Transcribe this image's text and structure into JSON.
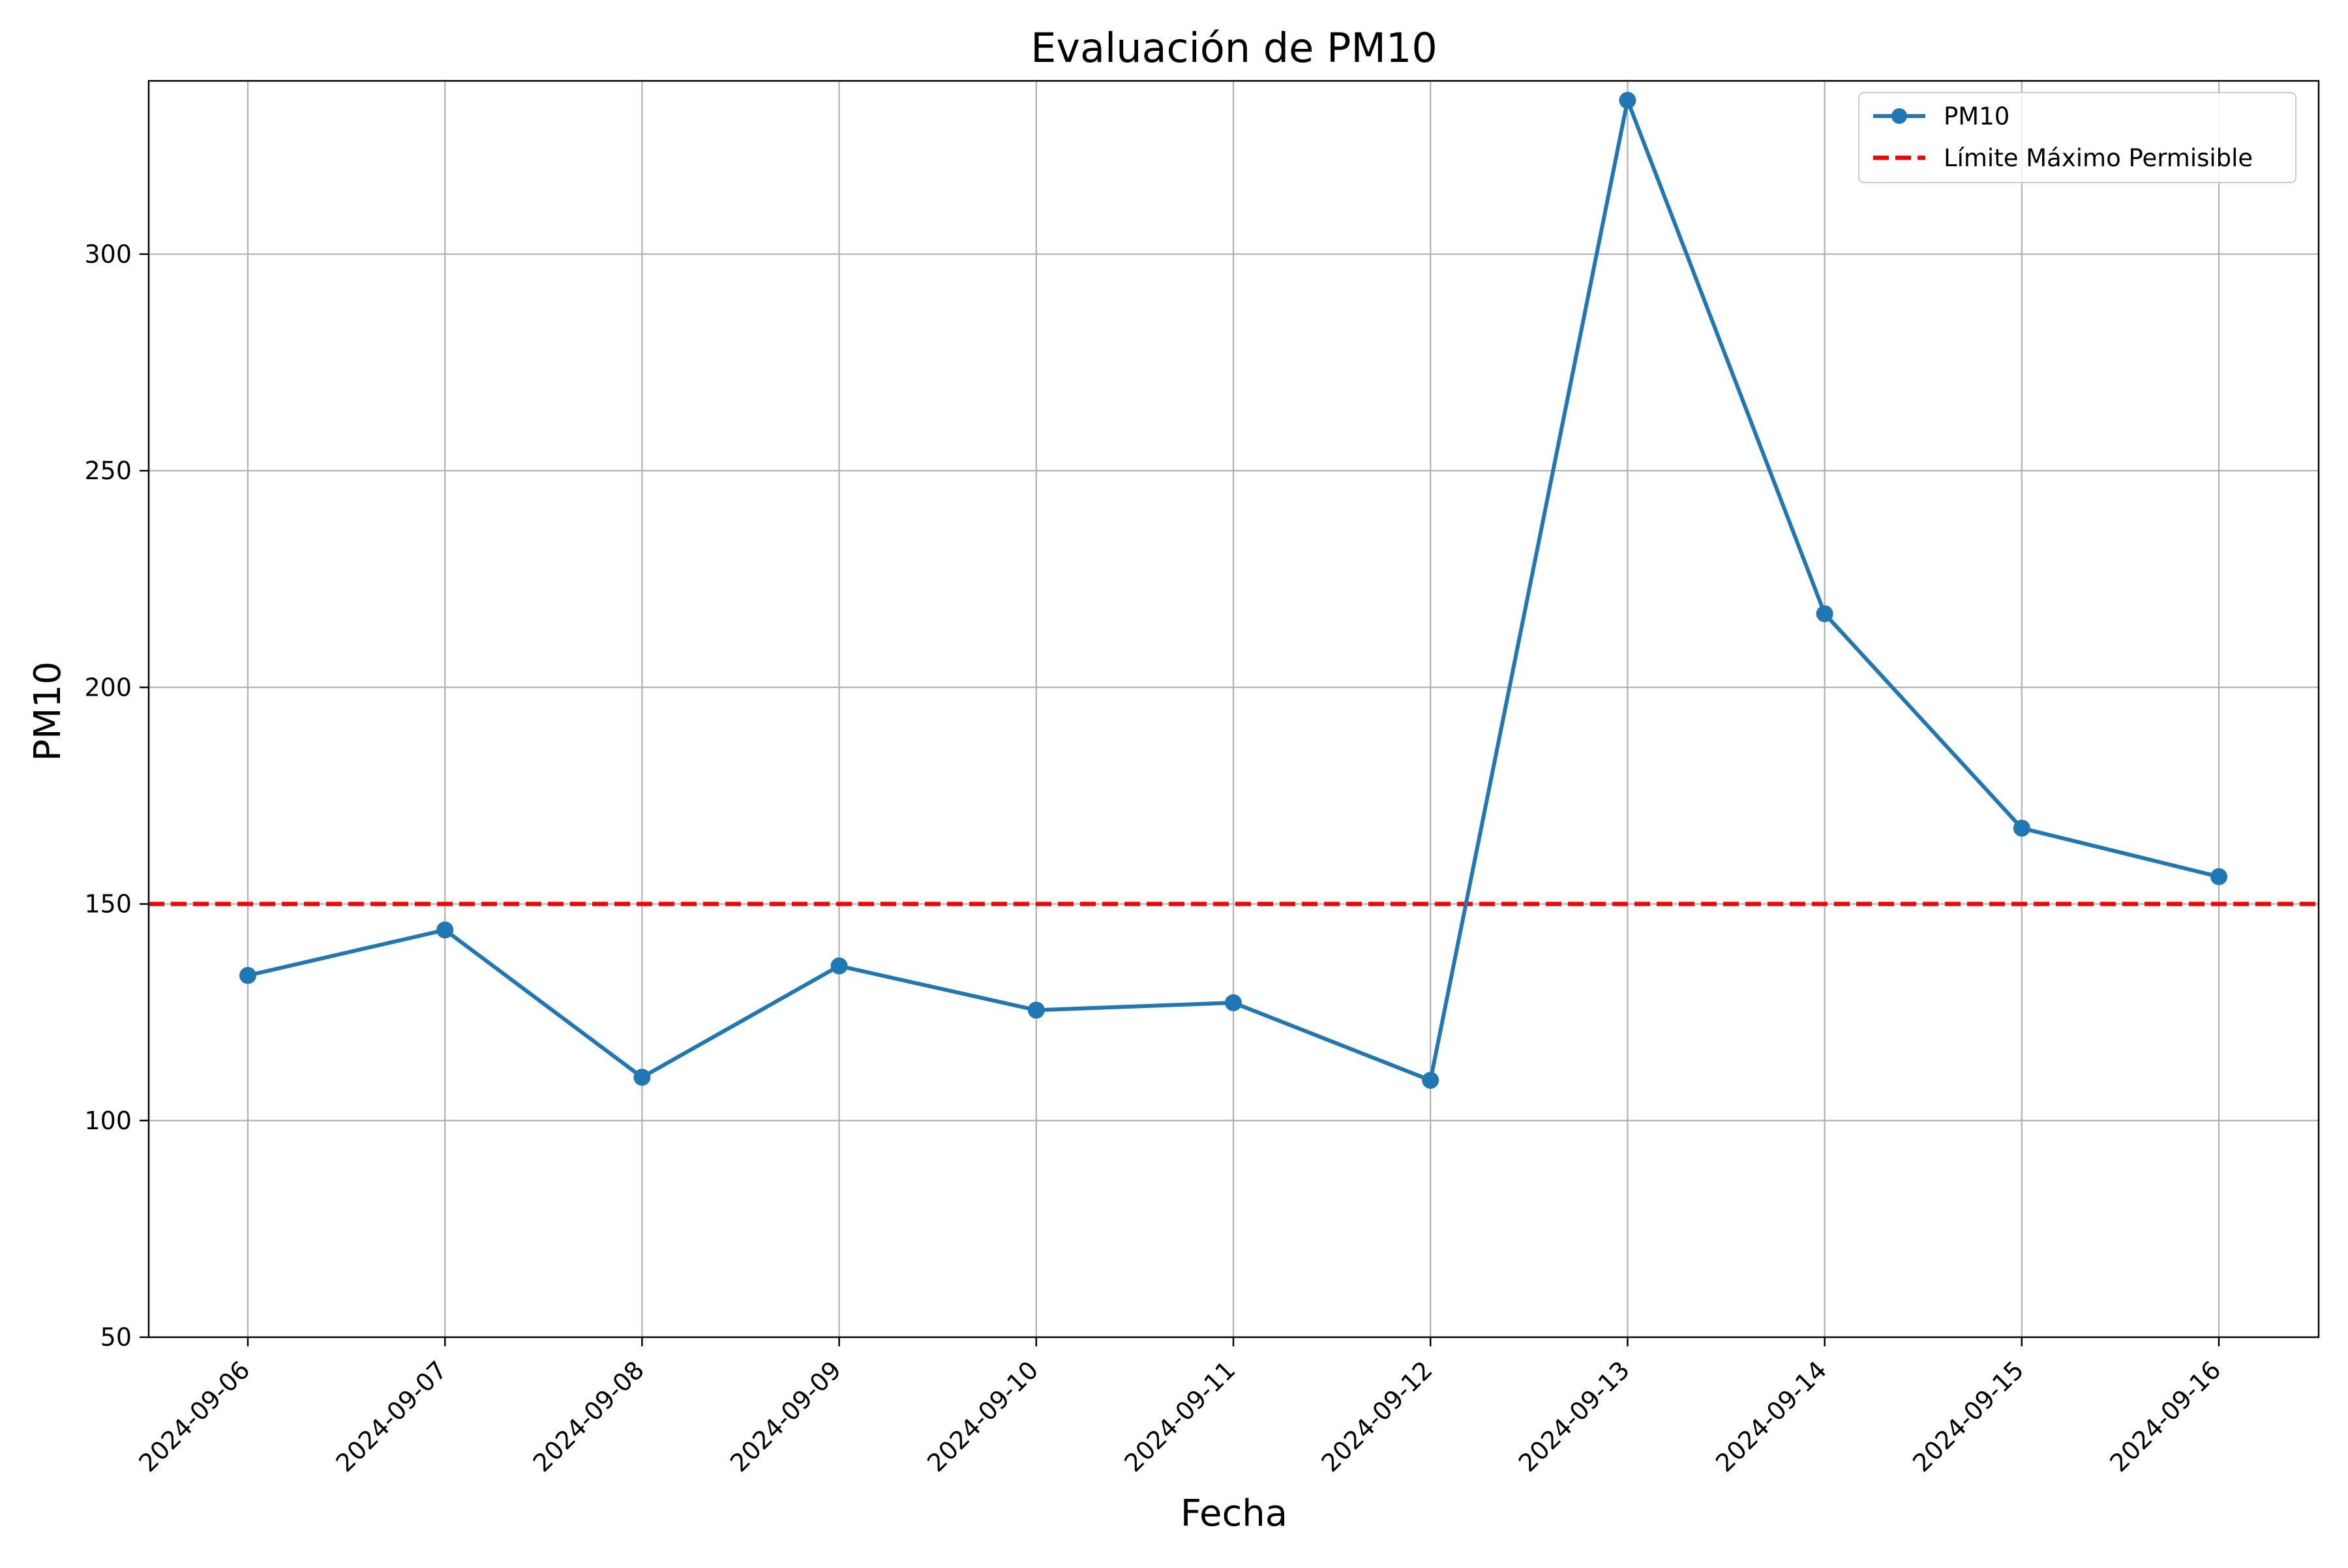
{
  "chart_data": {
    "type": "line",
    "title": "Evaluación de PM10",
    "xlabel": "Fecha",
    "ylabel": "PM10",
    "x": [
      "2024-09-06",
      "2024-09-07",
      "2024-09-08",
      "2024-09-09",
      "2024-09-10",
      "2024-09-11",
      "2024-09-12",
      "2024-09-13",
      "2024-09-14",
      "2024-09-15",
      "2024-09-16"
    ],
    "series": [
      {
        "name": "PM10",
        "values": [
          133.5,
          144,
          110,
          135.7,
          125.5,
          127.2,
          109.3,
          335.5,
          217,
          167.5,
          156.3
        ],
        "color": "#1f77b4",
        "marker": "circle"
      }
    ],
    "reference_lines": [
      {
        "name": "Límite Máximo Permisible",
        "y": 150,
        "color": "#ff0000",
        "style": "dashed"
      }
    ],
    "ylim": [
      50,
      340
    ],
    "yticks": [
      50,
      100,
      150,
      200,
      250,
      300
    ],
    "grid": true,
    "legend_position": "top-right",
    "xtick_rotation_deg": 45
  }
}
